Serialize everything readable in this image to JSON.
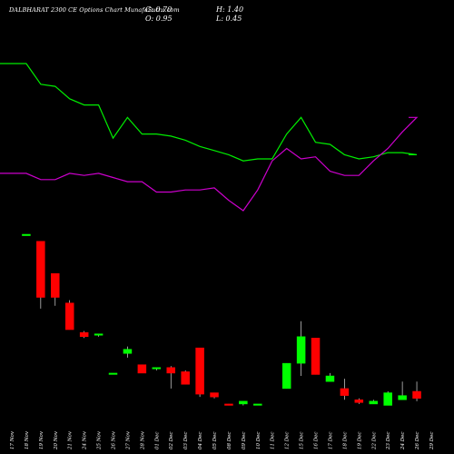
{
  "header": {
    "title": "DALBHARAT 2300  CE Options  Chart MunafaSutra.com",
    "close": "C: 0.70",
    "high": "H: 1.40",
    "open": "O: 0.95",
    "low": "L: 0.45"
  },
  "chart_data": {
    "type": "candlestick",
    "categories": [
      "17 Nov",
      "18 Nov",
      "19 Nov",
      "20 Nov",
      "21 Nov",
      "24 Nov",
      "25 Nov",
      "26 Nov",
      "27 Nov",
      "28 Nov",
      "01 Dec",
      "02 Dec",
      "03 Dec",
      "04 Dec",
      "05 Dec",
      "08 Dec",
      "09 Dec",
      "10 Dec",
      "11 Dec",
      "12 Dec",
      "15 Dec",
      "16 Dec",
      "17 Dec",
      "18 Dec",
      "19 Dec",
      "22 Dec",
      "23 Dec",
      "24 Dec",
      "26 Dec",
      "29 Dec"
    ],
    "candles": [
      {
        "o": 0,
        "c": 0,
        "h": 0,
        "l": 0,
        "color": "none"
      },
      {
        "o": 12.2,
        "c": 12.3,
        "h": 12.3,
        "l": 12.2,
        "color": "green"
      },
      {
        "o": 11.8,
        "c": 7.8,
        "h": 11.8,
        "l": 7.0,
        "color": "red"
      },
      {
        "o": 9.5,
        "c": 7.8,
        "h": 9.5,
        "l": 7.2,
        "color": "red"
      },
      {
        "o": 7.4,
        "c": 5.5,
        "h": 7.6,
        "l": 5.5,
        "color": "red"
      },
      {
        "o": 5.3,
        "c": 5.0,
        "h": 5.4,
        "l": 4.9,
        "color": "red"
      },
      {
        "o": 5.2,
        "c": 5.1,
        "h": 5.2,
        "l": 5.0,
        "color": "green"
      },
      {
        "o": 2.4,
        "c": 2.4,
        "h": 2.4,
        "l": 2.4,
        "color": "green"
      },
      {
        "o": 3.8,
        "c": 4.1,
        "h": 4.3,
        "l": 3.5,
        "color": "green"
      },
      {
        "o": 3.0,
        "c": 2.4,
        "h": 3.0,
        "l": 2.4,
        "color": "red"
      },
      {
        "o": 2.8,
        "c": 2.7,
        "h": 2.8,
        "l": 2.6,
        "color": "green"
      },
      {
        "o": 2.8,
        "c": 2.4,
        "h": 2.9,
        "l": 1.3,
        "color": "red"
      },
      {
        "o": 2.5,
        "c": 1.6,
        "h": 2.6,
        "l": 1.6,
        "color": "red"
      },
      {
        "o": 4.2,
        "c": 0.9,
        "h": 4.2,
        "l": 0.7,
        "color": "red"
      },
      {
        "o": 1.0,
        "c": 0.7,
        "h": 1.0,
        "l": 0.6,
        "color": "red"
      },
      {
        "o": 0.2,
        "c": 0.1,
        "h": 0.2,
        "l": 0.1,
        "color": "red"
      },
      {
        "o": 0.2,
        "c": 0.4,
        "h": 0.4,
        "l": 0.1,
        "color": "green"
      },
      {
        "o": 0.2,
        "c": 0.2,
        "h": 0.2,
        "l": 0.2,
        "color": "green"
      },
      {
        "o": 0,
        "c": 0,
        "h": 0,
        "l": 0,
        "color": "none"
      },
      {
        "o": 1.3,
        "c": 3.1,
        "h": 3.1,
        "l": 1.3,
        "color": "green"
      },
      {
        "o": 3.1,
        "c": 5.0,
        "h": 6.1,
        "l": 2.2,
        "color": "green"
      },
      {
        "o": 4.9,
        "c": 2.3,
        "h": 4.9,
        "l": 2.3,
        "color": "red"
      },
      {
        "o": 1.8,
        "c": 2.2,
        "h": 2.4,
        "l": 1.8,
        "color": "green"
      },
      {
        "o": 1.3,
        "c": 0.8,
        "h": 2.0,
        "l": 0.5,
        "color": "red"
      },
      {
        "o": 0.5,
        "c": 0.3,
        "h": 0.6,
        "l": 0.2,
        "color": "red"
      },
      {
        "o": 0.2,
        "c": 0.4,
        "h": 0.5,
        "l": 0.2,
        "color": "green"
      },
      {
        "o": 0.1,
        "c": 1.0,
        "h": 1.1,
        "l": 0.1,
        "color": "green"
      },
      {
        "o": 0.5,
        "c": 0.8,
        "h": 1.8,
        "l": 0.5,
        "color": "green"
      },
      {
        "o": 1.1,
        "c": 0.6,
        "h": 1.8,
        "l": 0.4,
        "color": "red"
      },
      {
        "o": 0,
        "c": 0,
        "h": 0,
        "l": 0,
        "color": "none"
      }
    ],
    "green_line": [
      14.6,
      14.6,
      13.6,
      13.5,
      12.9,
      12.6,
      12.6,
      11.0,
      12.0,
      11.2,
      11.2,
      11.1,
      10.9,
      10.6,
      10.4,
      10.2,
      9.9,
      10.0,
      10.0,
      11.2,
      12.0,
      10.8,
      10.7,
      10.2,
      10.0,
      10.1,
      10.3,
      10.3,
      10.2,
      10.2
    ],
    "purple_line": [
      9.3,
      9.3,
      9.0,
      9.0,
      9.3,
      9.2,
      9.3,
      9.1,
      8.9,
      8.9,
      8.4,
      8.4,
      8.5,
      8.5,
      8.6,
      8.0,
      7.5,
      8.5,
      9.9,
      10.5,
      10.0,
      10.1,
      9.4,
      9.2,
      9.2,
      9.9,
      10.5,
      11.3,
      12.0,
      12.0
    ],
    "colors": {
      "background": "#000000",
      "up": "#00ff00",
      "down": "#ff0000",
      "green_line": "#00ee00",
      "purple_line": "#cc00cc"
    }
  }
}
